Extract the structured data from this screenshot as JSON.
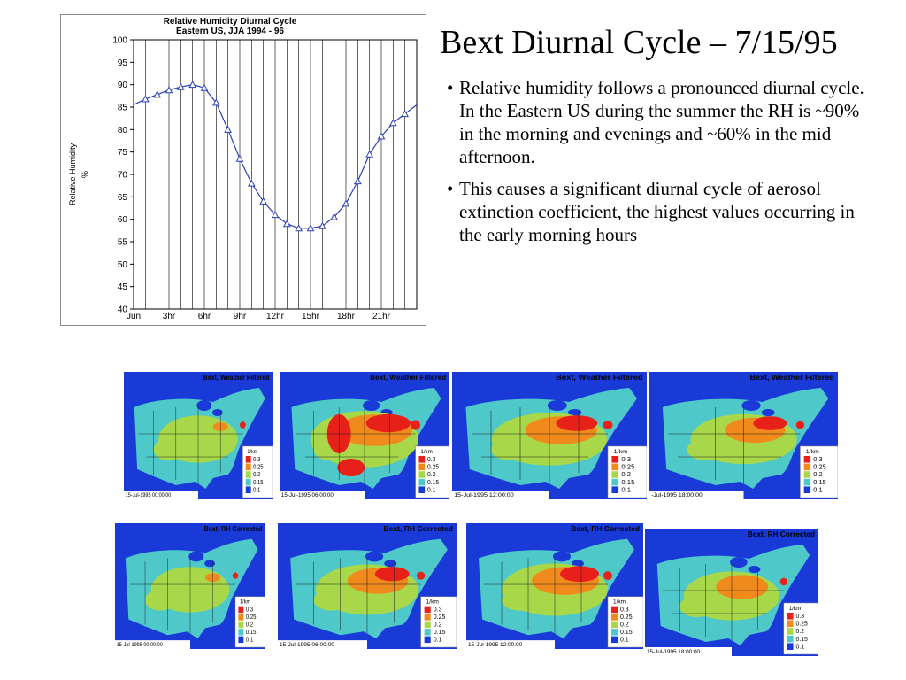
{
  "slide": {
    "title": "Bext Diurnal Cycle – 7/15/95",
    "bullets": [
      "Relative humidity follows a pronounced diurnal cycle.  In the Eastern US during the summer the RH is ~90% in the morning and evenings and ~60% in the mid afternoon.",
      "This causes a significant diurnal cycle of aerosol extinction coefficient, the highest values occurring in the early morning hours"
    ]
  },
  "chart_data": {
    "type": "line",
    "title": "Relative Humidity Diurnal Cycle",
    "subtitle": "Eastern US, JJA 1994 - 96",
    "ylabel": "Relative Humidity",
    "ylabel_unit": "%",
    "xlabel": "",
    "ylim": [
      40,
      100
    ],
    "yticks": [
      40,
      45,
      50,
      55,
      60,
      65,
      70,
      75,
      80,
      85,
      90,
      95,
      100
    ],
    "xlim": [
      0,
      24
    ],
    "xtick_values": [
      0,
      3,
      6,
      9,
      12,
      15,
      18,
      21
    ],
    "xtick_labels": [
      "Jun",
      "3hr",
      "6hr",
      "9hr",
      "12hr",
      "15hr",
      "18hr",
      "21hr"
    ],
    "grid": "vertical",
    "marker": "triangle",
    "color": "#2a3fb8",
    "x": [
      0,
      1,
      2,
      3,
      4,
      5,
      6,
      7,
      8,
      9,
      10,
      11,
      12,
      13,
      14,
      15,
      16,
      17,
      18,
      19,
      20,
      21,
      22,
      23,
      24
    ],
    "values": [
      85.5,
      86.8,
      87.8,
      88.8,
      89.5,
      90.0,
      89.3,
      86.0,
      80.0,
      73.5,
      68.0,
      64.0,
      61.0,
      59.0,
      58.0,
      58.0,
      58.5,
      60.5,
      63.5,
      68.5,
      74.5,
      78.5,
      81.5,
      83.5,
      85.5
    ]
  },
  "maps": {
    "top_title": "Bext, Weather Filtered",
    "bottom_title": "Bext, RH Corrected",
    "legend_unit": "1/km",
    "legend_values": [
      "0.3",
      "0.25",
      "0.2",
      "0.15",
      "0.1"
    ],
    "legend_colors": [
      "#e8201a",
      "#f08a1c",
      "#a8d84a",
      "#4ec8c8",
      "#1a3ad8"
    ],
    "timestamps": [
      "15-Jul-1995 00:00:00",
      "15-Jul-1995 06:00:00",
      "15-Jul-1995 12:00:00",
      "-Jul-1995 18:00:00",
      "15-Jul-1995 00:00:00",
      "15-Jul-1995 06:00:00",
      "15-Jul-1995 12:00:00",
      "15-Jul-1995 18:00:00"
    ]
  }
}
